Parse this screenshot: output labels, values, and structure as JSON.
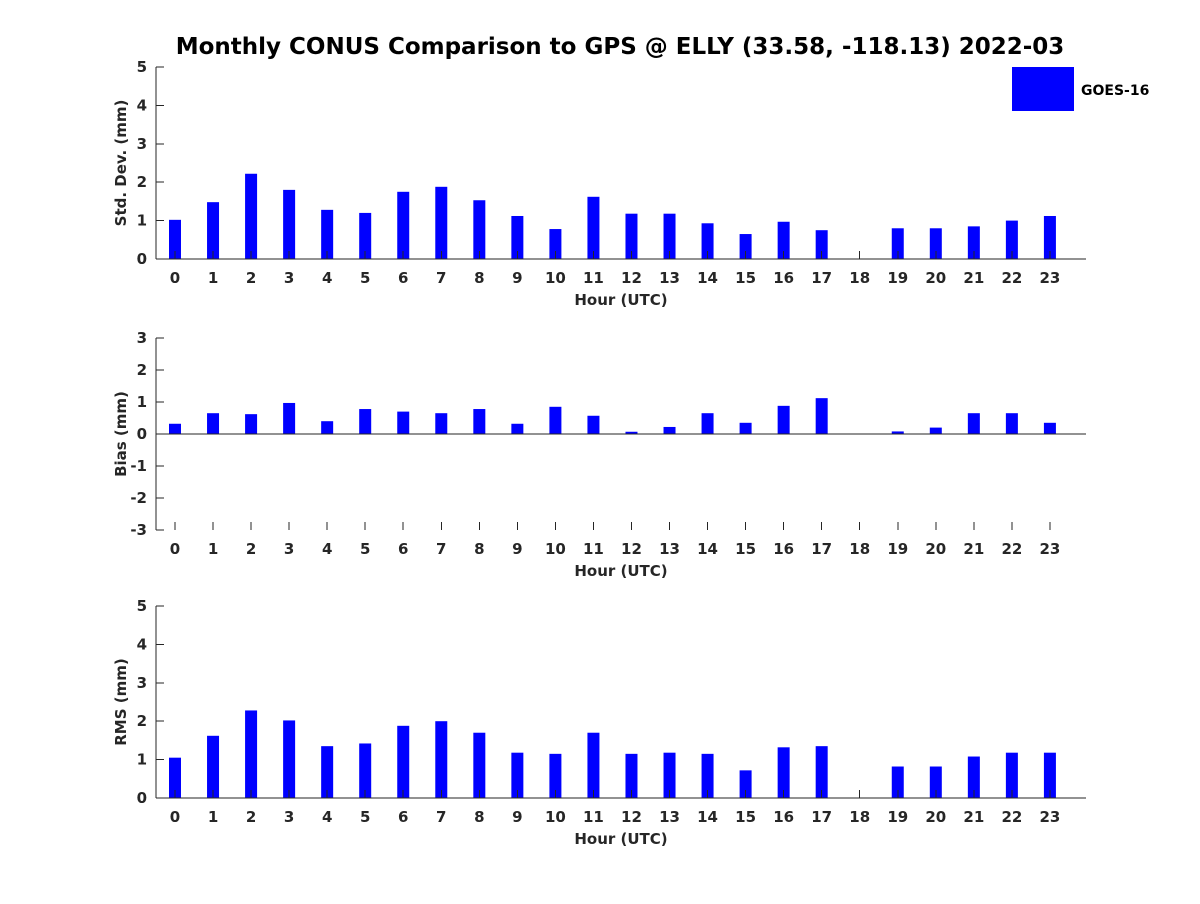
{
  "chart_data": {
    "type": "bar",
    "title": "Monthly CONUS Comparison to GPS @ ELLY (33.58, -118.13) 2022-03",
    "legend": {
      "label": "GOES-16",
      "color": "#0000ff",
      "placement": "top-right"
    },
    "categories": [
      "0",
      "1",
      "2",
      "3",
      "4",
      "5",
      "6",
      "7",
      "8",
      "9",
      "10",
      "11",
      "12",
      "13",
      "14",
      "15",
      "16",
      "17",
      "18",
      "19",
      "20",
      "21",
      "22",
      "23"
    ],
    "panels": [
      {
        "id": "std",
        "ylabel": "Std. Dev. (mm)",
        "xlabel": "Hour (UTC)",
        "ylim": [
          0,
          5
        ],
        "yticks": [
          0,
          1,
          2,
          3,
          4,
          5
        ],
        "series": [
          {
            "name": "GOES-16",
            "color": "#0000ff",
            "values": [
              1.02,
              1.48,
              2.22,
              1.8,
              1.28,
              1.2,
              1.75,
              1.88,
              1.53,
              1.12,
              0.78,
              1.62,
              1.18,
              1.18,
              0.93,
              0.65,
              0.97,
              0.75,
              null,
              0.8,
              0.8,
              0.85,
              1.0,
              1.12
            ]
          }
        ]
      },
      {
        "id": "bias",
        "ylabel": "Bias (mm)",
        "xlabel": "Hour (UTC)",
        "ylim": [
          -3,
          3
        ],
        "yticks": [
          -3,
          -2,
          -1,
          0,
          1,
          2,
          3
        ],
        "series": [
          {
            "name": "GOES-16",
            "color": "#0000ff",
            "values": [
              0.32,
              0.65,
              0.62,
              0.97,
              0.4,
              0.78,
              0.7,
              0.65,
              0.78,
              0.32,
              0.85,
              0.57,
              0.07,
              0.22,
              0.65,
              0.35,
              0.88,
              1.12,
              null,
              0.08,
              0.2,
              0.65,
              0.65,
              0.35
            ]
          }
        ]
      },
      {
        "id": "rms",
        "ylabel": "RMS (mm)",
        "xlabel": "Hour (UTC)",
        "ylim": [
          0,
          5
        ],
        "yticks": [
          0,
          1,
          2,
          3,
          4,
          5
        ],
        "series": [
          {
            "name": "GOES-16",
            "color": "#0000ff",
            "values": [
              1.05,
              1.62,
              2.28,
              2.02,
              1.35,
              1.42,
              1.88,
              2.0,
              1.7,
              1.18,
              1.15,
              1.7,
              1.15,
              1.18,
              1.15,
              0.72,
              1.32,
              1.35,
              null,
              0.82,
              0.82,
              1.08,
              1.18,
              1.18
            ]
          }
        ]
      }
    ]
  }
}
